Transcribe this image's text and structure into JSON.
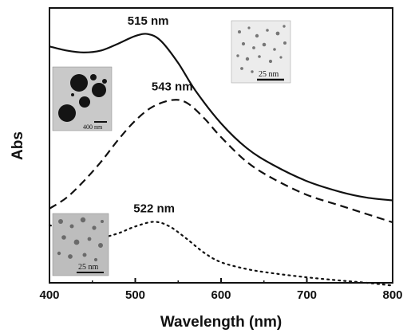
{
  "chart_data": {
    "type": "line",
    "xlabel": "Wavelength (nm)",
    "ylabel": "Abs",
    "xlim": [
      400,
      800
    ],
    "ylim": [
      0,
      1
    ],
    "x_ticks": [
      "400",
      "500",
      "600",
      "700",
      "800"
    ],
    "grid": false,
    "y_tick_labels": false,
    "series": [
      {
        "style": "solid",
        "x": [
          400,
          420,
          440,
          460,
          480,
          500,
          515,
          530,
          550,
          570,
          600,
          630,
          660,
          700,
          740,
          770,
          800
        ],
        "y": [
          0.86,
          0.845,
          0.838,
          0.845,
          0.87,
          0.898,
          0.905,
          0.88,
          0.8,
          0.7,
          0.58,
          0.49,
          0.43,
          0.37,
          0.33,
          0.31,
          0.3
        ]
      },
      {
        "style": "dashed",
        "x": [
          400,
          420,
          440,
          460,
          480,
          500,
          520,
          543,
          560,
          580,
          600,
          630,
          660,
          700,
          740,
          770,
          800
        ],
        "y": [
          0.27,
          0.31,
          0.37,
          0.44,
          0.52,
          0.59,
          0.64,
          0.665,
          0.655,
          0.6,
          0.53,
          0.44,
          0.38,
          0.32,
          0.28,
          0.25,
          0.22
        ]
      },
      {
        "style": "dotted",
        "x": [
          400,
          420,
          440,
          460,
          480,
          500,
          522,
          540,
          560,
          580,
          600,
          630,
          660,
          700,
          740,
          770,
          800
        ],
        "y": [
          0.21,
          0.19,
          0.17,
          0.165,
          0.18,
          0.205,
          0.222,
          0.205,
          0.16,
          0.11,
          0.075,
          0.05,
          0.035,
          0.02,
          0.008,
          0.0,
          -0.01
        ]
      }
    ],
    "annotations": [
      {
        "text": "515 nm",
        "x": 515,
        "y": 0.905
      },
      {
        "text": "543 nm",
        "x": 543,
        "y": 0.665
      },
      {
        "text": "522 nm",
        "x": 522,
        "y": 0.222
      }
    ],
    "insets": [
      {
        "name": "top-right",
        "scale_label": "25 nm"
      },
      {
        "name": "left",
        "scale_label": "400 nm"
      },
      {
        "name": "bottom-left",
        "scale_label": "25 nm"
      }
    ]
  }
}
